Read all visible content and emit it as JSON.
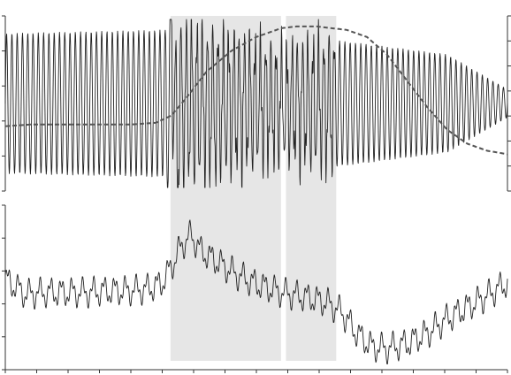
{
  "colors": {
    "background": "#ffffff",
    "signal": "#222222",
    "envelope": "#555555",
    "shading": "#e6e6e6",
    "axis": "#333333"
  },
  "chart_data": [
    {
      "type": "line",
      "panel": "top",
      "title": "",
      "xlabel": "",
      "ylabel": "",
      "grid": false,
      "xlim": [
        0,
        1
      ],
      "ylim": [
        0,
        1
      ],
      "shaded_regions": [
        [
          0.329,
          0.549
        ],
        [
          0.559,
          0.659
        ]
      ],
      "series": [
        {
          "style": "solid-oscillation",
          "description_values": {
            "x": [
              0,
              0.32,
              0.34,
              0.55,
              0.66,
              0.88,
              1.0
            ],
            "amplitude": [
              0.4,
              0.42,
              0.45,
              0.3,
              0.36,
              0.28,
              0.08
            ]
          }
        },
        {
          "style": "dashed",
          "x": [
            0,
            0.05,
            0.1,
            0.15,
            0.2,
            0.25,
            0.3,
            0.33,
            0.36,
            0.4,
            0.45,
            0.5,
            0.55,
            0.58,
            0.62,
            0.65,
            0.68,
            0.72,
            0.76,
            0.8,
            0.84,
            0.88,
            0.92,
            0.96,
            1.0
          ],
          "y": [
            0.37,
            0.38,
            0.38,
            0.38,
            0.38,
            0.38,
            0.39,
            0.43,
            0.53,
            0.68,
            0.8,
            0.88,
            0.93,
            0.94,
            0.94,
            0.93,
            0.92,
            0.88,
            0.78,
            0.63,
            0.48,
            0.35,
            0.27,
            0.23,
            0.21
          ]
        }
      ],
      "yticks_left": 5,
      "yticks_right": 7
    },
    {
      "type": "line",
      "panel": "bottom",
      "title": "",
      "xlabel": "",
      "ylabel": "",
      "grid": false,
      "xlim": [
        0,
        1
      ],
      "ylim": [
        0,
        1
      ],
      "shaded_regions": [
        [
          0.329,
          0.549
        ],
        [
          0.559,
          0.659
        ]
      ],
      "series": [
        {
          "style": "solid",
          "x": [
            0,
            0.04,
            0.08,
            0.12,
            0.16,
            0.2,
            0.24,
            0.28,
            0.31,
            0.33,
            0.35,
            0.37,
            0.39,
            0.42,
            0.46,
            0.5,
            0.55,
            0.6,
            0.64,
            0.67,
            0.7,
            0.73,
            0.76,
            0.8,
            0.84,
            0.88,
            0.92,
            0.96,
            1.0
          ],
          "y": [
            0.55,
            0.46,
            0.47,
            0.47,
            0.47,
            0.48,
            0.48,
            0.49,
            0.52,
            0.62,
            0.75,
            0.82,
            0.72,
            0.66,
            0.58,
            0.52,
            0.47,
            0.44,
            0.41,
            0.35,
            0.22,
            0.14,
            0.13,
            0.16,
            0.22,
            0.31,
            0.38,
            0.45,
            0.53
          ]
        }
      ],
      "xticks": 16,
      "yticks_left": 5
    }
  ]
}
